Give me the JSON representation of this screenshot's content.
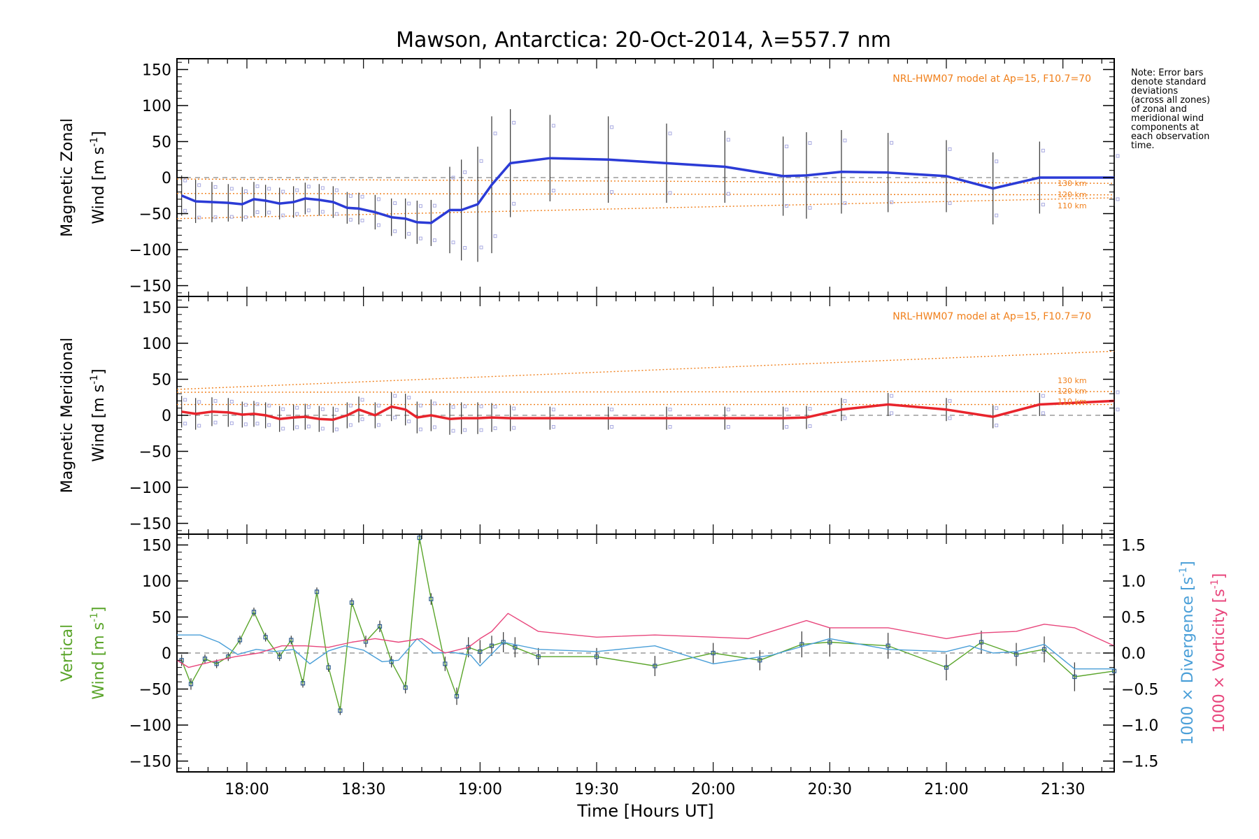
{
  "title": "Mawson, Antarctica: 20-Oct-2014, λ=557.7 nm",
  "xlabel": "Time [Hours UT]",
  "x_ticks": [
    "18:00",
    "18:30",
    "19:00",
    "19:30",
    "20:00",
    "20:30",
    "21:00",
    "21:30"
  ],
  "y_ticks": [
    "150",
    "100",
    "50",
    "0",
    "−50",
    "−100",
    "−150"
  ],
  "right_ticks": [
    "1.5",
    "1.0",
    "0.5",
    "0.0",
    "−0.5",
    "−1.0",
    "−1.5"
  ],
  "note": [
    "Note: Error bars",
    "denote standard",
    "deviations",
    "(across all zones)",
    "of zonal and",
    "meridional wind",
    "components at",
    "each observation",
    "time."
  ],
  "panel_labels": {
    "zonal_line1": "Magnetic Zonal",
    "zonal_line2": "Wind [m s",
    "meridional_line1": "Magnetic Meridional",
    "meridional_line2": "Wind [m s",
    "vertical_line1": "Vertical",
    "vertical_line2": "Wind [m s",
    "unit_sup": "-1",
    "divergence": "1000 × Divergence [s",
    "vorticity": "1000 × Vorticity [s",
    "inv_s": "]"
  },
  "model_label": "NRL-HWM07 model at Ap=15, F10.7=70",
  "model_heights": [
    "130 km",
    "120 km",
    "110 km"
  ],
  "colors": {
    "zonal": "#2b3bd6",
    "meridional": "#e8242c",
    "vertical": "#5aa52a",
    "divergence": "#4a9fd8",
    "vorticity": "#e8467c",
    "model": "#f07f1a",
    "zone_points": "#a7a9e0",
    "errorbar": "#333333"
  },
  "chart_data": [
    {
      "type": "line",
      "panel": "zonal",
      "x_unit": "hours UT",
      "xlim": [
        17.7,
        21.72
      ],
      "ylim": [
        -165,
        165
      ],
      "series": [
        {
          "x": [
            17.72,
            17.78,
            17.85,
            17.92,
            17.98,
            18.03,
            18.08,
            18.14,
            18.2,
            18.25,
            18.31,
            18.37,
            18.43,
            18.48,
            18.55,
            18.62,
            18.68,
            18.73,
            18.79,
            18.87,
            18.92,
            18.99,
            19.05,
            19.13,
            19.3,
            19.55,
            19.8,
            20.05,
            20.3,
            20.4,
            20.55,
            20.75,
            21.0,
            21.2,
            21.4,
            21.72
          ],
          "values": [
            -25,
            -33,
            -34,
            -35,
            -37,
            -30,
            -32,
            -36,
            -34,
            -29,
            -31,
            -34,
            -42,
            -43,
            -48,
            -55,
            -57,
            -62,
            -63,
            -45,
            -45,
            -37,
            -10,
            20,
            27,
            25,
            20,
            15,
            2,
            3,
            8,
            7,
            2,
            -15,
            0,
            0
          ],
          "errors": [
            28,
            30,
            28,
            26,
            24,
            24,
            22,
            22,
            22,
            22,
            22,
            22,
            22,
            22,
            24,
            26,
            28,
            30,
            32,
            60,
            70,
            80,
            95,
            75,
            60,
            60,
            55,
            50,
            55,
            60,
            58,
            55,
            50,
            50,
            50,
            40
          ]
        }
      ],
      "model": {
        "times": [
          17.7,
          21.72
        ],
        "130 km": [
          -2,
          -8
        ],
        "120 km": [
          -22,
          -24
        ],
        "110 km": [
          -57,
          -28
        ]
      }
    },
    {
      "type": "line",
      "panel": "meridional",
      "x_unit": "hours UT",
      "xlim": [
        17.7,
        21.72
      ],
      "ylim": [
        -165,
        165
      ],
      "series": [
        {
          "x": [
            17.72,
            17.78,
            17.85,
            17.92,
            17.98,
            18.03,
            18.08,
            18.14,
            18.2,
            18.25,
            18.31,
            18.37,
            18.43,
            18.48,
            18.55,
            18.62,
            18.68,
            18.73,
            18.79,
            18.87,
            18.92,
            18.99,
            19.05,
            19.13,
            19.3,
            19.55,
            19.8,
            20.05,
            20.3,
            20.4,
            20.55,
            20.75,
            21.0,
            21.2,
            21.4,
            21.72
          ],
          "values": [
            5,
            2,
            5,
            4,
            1,
            2,
            0,
            -5,
            -3,
            -2,
            -5,
            -6,
            0,
            8,
            0,
            12,
            8,
            -3,
            0,
            -5,
            -4,
            -4,
            -3,
            -4,
            -4,
            -4,
            -4,
            -4,
            -4,
            -3,
            8,
            15,
            8,
            -2,
            15,
            20
          ],
          "errors": [
            22,
            22,
            20,
            20,
            18,
            18,
            18,
            18,
            18,
            18,
            18,
            18,
            18,
            18,
            18,
            20,
            22,
            22,
            22,
            22,
            22,
            22,
            20,
            18,
            16,
            16,
            16,
            16,
            16,
            16,
            16,
            16,
            16,
            16,
            16,
            16
          ]
        }
      ],
      "model": {
        "times": [
          17.7,
          21.72
        ],
        "130 km": [
          36,
          89
        ],
        "120 km": [
          32,
          33
        ],
        "110 km": [
          15,
          15
        ]
      }
    },
    {
      "type": "line",
      "panel": "vertical",
      "x_unit": "hours UT",
      "xlim": [
        17.7,
        21.72
      ],
      "ylim": [
        -165,
        165
      ],
      "ylim_right": [
        -1.65,
        1.65
      ],
      "series": [
        {
          "name": "Vertical Wind",
          "x": [
            17.72,
            17.76,
            17.82,
            17.87,
            17.92,
            17.97,
            18.03,
            18.08,
            18.14,
            18.19,
            18.24,
            18.3,
            18.35,
            18.4,
            18.45,
            18.51,
            18.57,
            18.62,
            18.68,
            18.74,
            18.79,
            18.85,
            18.9,
            18.95,
            19.0,
            19.05,
            19.1,
            19.15,
            19.25,
            19.5,
            19.75,
            20.0,
            20.2,
            20.38,
            20.5,
            20.75,
            21.0,
            21.15,
            21.3,
            21.42,
            21.55,
            21.72
          ],
          "values": [
            -10,
            -43,
            -8,
            -15,
            -5,
            18,
            57,
            22,
            -5,
            18,
            -42,
            85,
            -20,
            -80,
            70,
            16,
            37,
            -12,
            -48,
            160,
            75,
            -15,
            -60,
            8,
            2,
            10,
            15,
            8,
            -5,
            -5,
            -18,
            0,
            -10,
            12,
            15,
            10,
            -20,
            15,
            -2,
            5,
            -33,
            -25
          ],
          "errors": [
            8,
            8,
            6,
            6,
            6,
            6,
            6,
            6,
            6,
            6,
            6,
            6,
            6,
            6,
            6,
            8,
            8,
            8,
            8,
            8,
            8,
            10,
            12,
            14,
            16,
            14,
            14,
            14,
            12,
            12,
            14,
            14,
            14,
            18,
            20,
            18,
            18,
            16,
            16,
            18,
            20,
            20
          ]
        },
        {
          "name": "1000 × Divergence",
          "axis": "right",
          "x": [
            17.7,
            17.8,
            17.88,
            17.96,
            18.04,
            18.12,
            18.2,
            18.27,
            18.35,
            18.42,
            18.5,
            18.58,
            18.65,
            18.73,
            18.8,
            18.88,
            18.96,
            19.0,
            19.1,
            19.25,
            19.5,
            19.75,
            20.0,
            20.25,
            20.5,
            20.75,
            21.0,
            21.1,
            21.2,
            21.3,
            21.42,
            21.55,
            21.72
          ],
          "values": [
            0.25,
            0.25,
            0.15,
            -0.02,
            0.05,
            0.02,
            0.05,
            -0.15,
            0.03,
            0.1,
            0.04,
            -0.12,
            -0.1,
            0.2,
            0.0,
            0.01,
            -0.03,
            -0.18,
            0.15,
            0.05,
            0.02,
            0.1,
            -0.15,
            -0.03,
            0.2,
            0.05,
            0.02,
            0.1,
            0.0,
            0.02,
            0.12,
            -0.22,
            -0.22
          ]
        },
        {
          "name": "1000 × Vorticity",
          "axis": "right",
          "x": [
            17.7,
            17.75,
            17.85,
            17.95,
            18.05,
            18.15,
            18.25,
            18.35,
            18.45,
            18.55,
            18.65,
            18.75,
            18.85,
            18.95,
            19.0,
            19.05,
            19.12,
            19.25,
            19.5,
            19.75,
            20.0,
            20.15,
            20.3,
            20.4,
            20.5,
            20.75,
            21.0,
            21.15,
            21.3,
            21.42,
            21.55,
            21.72
          ],
          "values": [
            -0.1,
            -0.2,
            -0.12,
            -0.05,
            0.0,
            0.1,
            0.1,
            0.08,
            0.15,
            0.2,
            0.15,
            0.2,
            0.0,
            0.08,
            0.2,
            0.3,
            0.55,
            0.3,
            0.22,
            0.25,
            0.22,
            0.2,
            0.35,
            0.45,
            0.35,
            0.35,
            0.2,
            0.28,
            0.3,
            0.4,
            0.35,
            0.1
          ]
        }
      ]
    }
  ]
}
